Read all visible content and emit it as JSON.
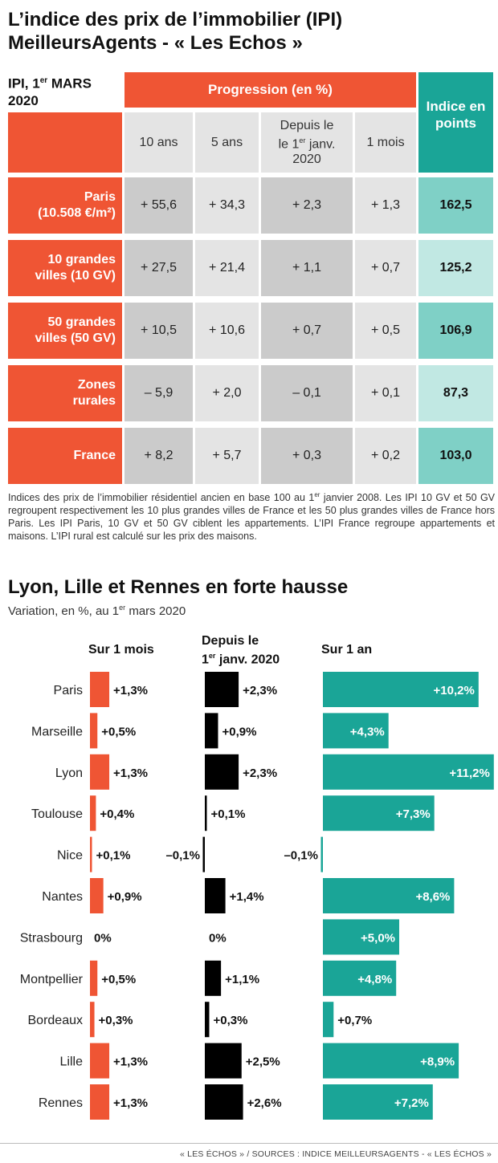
{
  "table": {
    "title": "L’indice des prix de l’immobilier (IPI) MeilleursAgents - « Les Echos »",
    "ipi_label": "IPI, 1",
    "ipi_label_sup": "er",
    "ipi_label_end": " MARS 2020",
    "progression_header": "Progression (en %)",
    "indice_header": "Indice en points",
    "columns": [
      "10 ans",
      "5 ans",
      "Depuis le",
      "1 mois"
    ],
    "col_depuis_line2a": "le 1",
    "col_depuis_sup": "er",
    "col_depuis_line2b": " janv.",
    "col_depuis_line3": "2020",
    "rows": [
      {
        "label_line1": "Paris",
        "label_line2": "(10.508 €/m²)",
        "values": [
          "+ 55,6",
          "+ 34,3",
          "+ 2,3",
          "+ 1,3"
        ],
        "indice": "162,5"
      },
      {
        "label_line1": "10 grandes",
        "label_line2": "villes (10 GV)",
        "values": [
          "+ 27,5",
          "+ 21,4",
          "+ 1,1",
          "+ 0,7"
        ],
        "indice": "125,2"
      },
      {
        "label_line1": "50 grandes",
        "label_line2": "villes (50 GV)",
        "values": [
          "+ 10,5",
          "+ 10,6",
          "+ 0,7",
          "+ 0,5"
        ],
        "indice": "106,9"
      },
      {
        "label_line1": "Zones",
        "label_line2": "rurales",
        "values": [
          "– 5,9",
          "+ 2,0",
          "– 0,1",
          "+ 0,1"
        ],
        "indice": "87,3"
      },
      {
        "label_line1": "France",
        "label_line2": "",
        "values": [
          "+ 8,2",
          "+ 5,7",
          "+ 0,3",
          "+ 0,2"
        ],
        "indice": "103,0"
      }
    ],
    "note_a": "Indices des prix de l’immobilier résidentiel ancien en base 100 au 1",
    "note_sup": "er",
    "note_b": " janvier 2008. Les IPI 10 GV et 50 GV regroupent respectivement les 10 plus grandes villes de France et les 50 plus grandes villes de France hors Paris. Les IPI Paris, 10 GV et 50 GV ciblent les appartements. L’IPI France regroupe appartements et maisons. L’IPI rural est calculé sur les prix des maisons."
  },
  "chart_data": {
    "type": "bar",
    "title": "Lyon, Lille et Rennes en forte hausse",
    "subtitle_a": "Variation, en %, au 1",
    "subtitle_sup": "er",
    "subtitle_b": " mars 2020",
    "categories": [
      "Paris",
      "Marseille",
      "Lyon",
      "Toulouse",
      "Nice",
      "Nantes",
      "Strasbourg",
      "Montpellier",
      "Bordeaux",
      "Lille",
      "Rennes"
    ],
    "series": [
      {
        "name": "Sur 1 mois",
        "values": [
          1.3,
          0.5,
          1.3,
          0.4,
          0.1,
          0.9,
          0,
          0.5,
          0.3,
          1.3,
          1.3
        ],
        "labels": [
          "+1,3%",
          "+0,5%",
          "+1,3%",
          "+0,4%",
          "+0,1%",
          "+0,9%",
          "0%",
          "+0,5%",
          "+0,3%",
          "+1,3%",
          "+1,3%"
        ]
      },
      {
        "name": "Depuis le 1er janv. 2020",
        "values": [
          2.3,
          0.9,
          2.3,
          0.1,
          -0.1,
          1.4,
          0,
          1.1,
          0.3,
          2.5,
          2.6
        ],
        "labels": [
          "+2,3%",
          "+0,9%",
          "+2,3%",
          "+0,1%",
          "–0,1%",
          "+1,4%",
          "0%",
          "+1,1%",
          "+0,3%",
          "+2,5%",
          "+2,6%"
        ]
      },
      {
        "name": "Sur 1 an",
        "values": [
          10.2,
          4.3,
          11.2,
          7.3,
          -0.1,
          8.6,
          5.0,
          4.8,
          0.7,
          8.9,
          7.2
        ],
        "labels": [
          "+10,2%",
          "+4,3%",
          "+11,2%",
          "+7,3%",
          "–0,1%",
          "+8,6%",
          "+5,0%",
          "+4,8%",
          "+0,7%",
          "+8,9%",
          "+7,2%"
        ]
      }
    ],
    "panel_headers": {
      "monthly": "Sur 1 mois",
      "ytd_line1": "Depuis le",
      "ytd_line2a": "1",
      "ytd_line2_sup": "er",
      "ytd_line2b": " janv. 2020",
      "yearly": "Sur 1 an"
    },
    "colors": {
      "monthly": "#ef5534",
      "ytd": "#000000",
      "yearly": "#1aa597"
    }
  },
  "source": "« LES ÉCHOS » / SOURCES : INDICE MEILLEURSAGENTS - « LES ÉCHOS »"
}
